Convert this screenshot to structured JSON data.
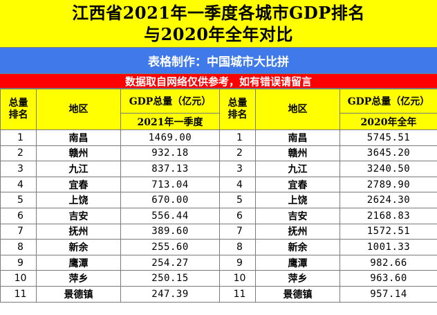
{
  "title": {
    "line1": "江西省2021年一季度各城市GDP排名",
    "line2": "与2020年全年对比"
  },
  "credit": "表格制作：中国城市大比拼",
  "notice": "数据取自网络仅供参考，如有错误请留言",
  "colors": {
    "title_bg": "#ffff00",
    "credit_bg": "#3f79ea",
    "notice_bg": "#ff0000",
    "header_bg": "#ffff00"
  },
  "headers": {
    "rank": "总量\n排名",
    "region": "地区",
    "gdp": "GDP总量（亿元）",
    "period_left": "2021年一季度",
    "period_right": "2020年全年"
  },
  "left_rows": [
    {
      "rank": "1",
      "city": "南昌",
      "value": "1469.00"
    },
    {
      "rank": "2",
      "city": "赣州",
      "value": "932.18"
    },
    {
      "rank": "3",
      "city": "九江",
      "value": "837.13"
    },
    {
      "rank": "4",
      "city": "宜春",
      "value": "713.04"
    },
    {
      "rank": "5",
      "city": "上饶",
      "value": "670.00"
    },
    {
      "rank": "6",
      "city": "吉安",
      "value": "556.44"
    },
    {
      "rank": "7",
      "city": "抚州",
      "value": "389.60"
    },
    {
      "rank": "8",
      "city": "新余",
      "value": "255.60"
    },
    {
      "rank": "9",
      "city": "鹰潭",
      "value": "254.27"
    },
    {
      "rank": "10",
      "city": "萍乡",
      "value": "250.15"
    },
    {
      "rank": "11",
      "city": "景德镇",
      "value": "247.39"
    }
  ],
  "right_rows": [
    {
      "rank": "1",
      "city": "南昌",
      "value": "5745.51"
    },
    {
      "rank": "2",
      "city": "赣州",
      "value": "3645.20"
    },
    {
      "rank": "3",
      "city": "九江",
      "value": "3240.50"
    },
    {
      "rank": "4",
      "city": "宜春",
      "value": "2789.90"
    },
    {
      "rank": "5",
      "city": "上饶",
      "value": "2624.30"
    },
    {
      "rank": "6",
      "city": "吉安",
      "value": "2168.83"
    },
    {
      "rank": "7",
      "city": "抚州",
      "value": "1572.51"
    },
    {
      "rank": "8",
      "city": "新余",
      "value": "1001.33"
    },
    {
      "rank": "9",
      "city": "鹰潭",
      "value": "982.66"
    },
    {
      "rank": "10",
      "city": "萍乡",
      "value": "963.60"
    },
    {
      "rank": "11",
      "city": "景德镇",
      "value": "957.14"
    }
  ]
}
